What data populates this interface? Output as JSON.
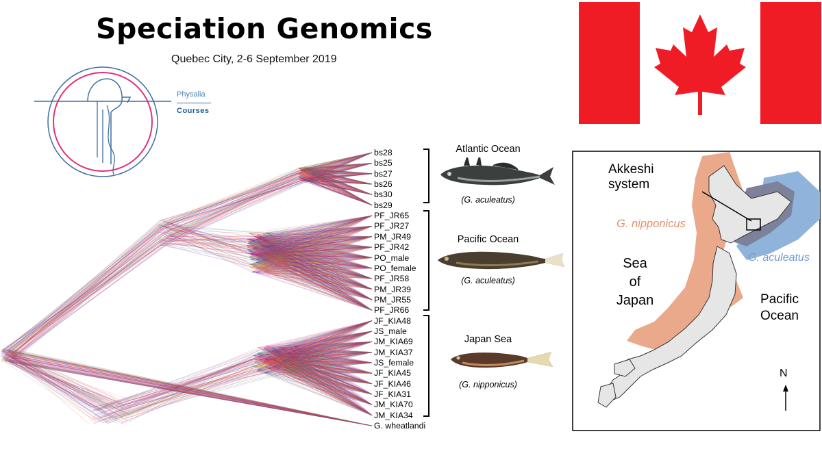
{
  "header": {
    "title": "Speciation Genomics",
    "subtitle": "Quebec City, 2-6 September 2019"
  },
  "logo": {
    "line1": "Physalia",
    "line2": "Courses"
  },
  "flag": {
    "country": "Canada",
    "colors": {
      "red": "#ef1c26",
      "white": "#ffffff"
    }
  },
  "tree": {
    "leaves": [
      "bs28",
      "bs25",
      "bs27",
      "bs26",
      "bs30",
      "bs29",
      "PF_JR65",
      "PF_JR27",
      "PM_JR49",
      "PF_JR42",
      "PO_male",
      "PO_female",
      "PF_JR58",
      "PM_JR39",
      "PM_JR55",
      "PF_JR66",
      "JF_KIA48",
      "JS_male",
      "JM_KIA69",
      "JM_KIA37",
      "JS_female",
      "JF_KIA45",
      "JF_KIA46",
      "JF_KIA31",
      "JM_KIA70",
      "JM_KIA34",
      "G. wheatlandi"
    ],
    "groups": [
      {
        "region": "Atlantic Ocean",
        "species": "(G. aculeatus)"
      },
      {
        "region": "Pacific Ocean",
        "species": "(G. aculeatus)"
      },
      {
        "region": "Japan Sea",
        "species": "(G. nipponicus)"
      }
    ],
    "colors": [
      "#d81b60",
      "#e53935",
      "#f06292",
      "#7b1fa2",
      "#3949ab",
      "#43a047",
      "#fb8c00"
    ]
  },
  "map": {
    "akkeshi_line1": "Akkeshi",
    "akkeshi_line2": "system",
    "g_nipponicus": "G. nipponicus",
    "g_aculeatus": "G. aculeatus",
    "sea_line1": "Sea",
    "sea_line2": "of",
    "sea_line3": "Japan",
    "pacific_line1": "Pacific",
    "pacific_line2": "Ocean",
    "north": "N",
    "colors": {
      "nipponicus": "#e9a98a",
      "aculeatus": "#8fb3da",
      "overlap": "#7d8199",
      "land": "#e6e6e6"
    }
  }
}
